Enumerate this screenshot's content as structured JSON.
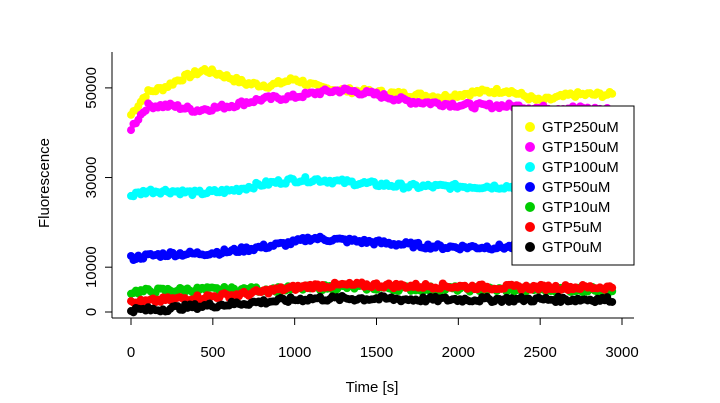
{
  "chart_data": {
    "type": "scatter",
    "xlabel": "Time [s]",
    "ylabel": "Fluorescence",
    "xlim": [
      0,
      3000
    ],
    "ylim": [
      0,
      56000
    ],
    "xticks": [
      0,
      500,
      1000,
      1500,
      2000,
      2500,
      3000
    ],
    "yticks": [
      0,
      10000,
      30000,
      50000
    ],
    "grid": false,
    "legend_position": "right",
    "series": [
      {
        "name": "GTP250uM",
        "color": "#FFFF00",
        "points": [
          [
            0,
            44000
          ],
          [
            100,
            49000
          ],
          [
            200,
            50000
          ],
          [
            300,
            52000
          ],
          [
            450,
            54000
          ],
          [
            550,
            53000
          ],
          [
            700,
            51000
          ],
          [
            850,
            50500
          ],
          [
            1000,
            52000
          ],
          [
            1150,
            50000
          ],
          [
            1300,
            49500
          ],
          [
            1500,
            49000
          ],
          [
            1700,
            48500
          ],
          [
            1900,
            48000
          ],
          [
            2100,
            49000
          ],
          [
            2300,
            49500
          ],
          [
            2500,
            47000
          ],
          [
            2700,
            48500
          ],
          [
            2950,
            48500
          ]
        ]
      },
      {
        "name": "GTP150uM",
        "color": "#FF00FF",
        "points": [
          [
            0,
            41000
          ],
          [
            100,
            46000
          ],
          [
            250,
            46000
          ],
          [
            400,
            45000
          ],
          [
            600,
            46000
          ],
          [
            800,
            47500
          ],
          [
            1000,
            48000
          ],
          [
            1150,
            49000
          ],
          [
            1300,
            49500
          ],
          [
            1500,
            48500
          ],
          [
            1700,
            47000
          ],
          [
            1900,
            46500
          ],
          [
            2100,
            46000
          ],
          [
            2300,
            46000
          ],
          [
            2500,
            45500
          ],
          [
            2700,
            45500
          ],
          [
            2950,
            45000
          ]
        ]
      },
      {
        "name": "GTP100uM",
        "color": "#00FFFF",
        "points": [
          [
            0,
            26000
          ],
          [
            100,
            27000
          ],
          [
            250,
            27000
          ],
          [
            400,
            26500
          ],
          [
            600,
            27000
          ],
          [
            800,
            28500
          ],
          [
            1000,
            29500
          ],
          [
            1150,
            29500
          ],
          [
            1300,
            29000
          ],
          [
            1500,
            28500
          ],
          [
            1700,
            28000
          ],
          [
            1900,
            28000
          ],
          [
            2100,
            28000
          ],
          [
            2300,
            28000
          ],
          [
            2500,
            27500
          ],
          [
            2700,
            27500
          ],
          [
            2950,
            27500
          ]
        ]
      },
      {
        "name": "GTP50uM",
        "color": "#0000FF",
        "points": [
          [
            0,
            12000
          ],
          [
            100,
            12500
          ],
          [
            250,
            13000
          ],
          [
            400,
            13000
          ],
          [
            600,
            13500
          ],
          [
            800,
            14500
          ],
          [
            1000,
            15500
          ],
          [
            1100,
            16500
          ],
          [
            1300,
            16000
          ],
          [
            1500,
            15500
          ],
          [
            1700,
            15000
          ],
          [
            1900,
            14500
          ],
          [
            2100,
            14500
          ],
          [
            2300,
            14500
          ],
          [
            2500,
            14500
          ],
          [
            2700,
            14500
          ],
          [
            2950,
            14500
          ]
        ]
      },
      {
        "name": "GTP10uM",
        "color": "#00CC00",
        "points": [
          [
            0,
            4500
          ],
          [
            200,
            4800
          ],
          [
            400,
            5000
          ],
          [
            600,
            5000
          ],
          [
            800,
            5000
          ],
          [
            1000,
            5200
          ],
          [
            1200,
            5500
          ],
          [
            1400,
            5500
          ],
          [
            1600,
            5300
          ],
          [
            1800,
            5200
          ],
          [
            2000,
            5200
          ],
          [
            2200,
            5000
          ],
          [
            2400,
            5000
          ],
          [
            2600,
            5000
          ],
          [
            2800,
            5000
          ],
          [
            2950,
            5000
          ]
        ]
      },
      {
        "name": "GTP5uM",
        "color": "#FF0000",
        "points": [
          [
            0,
            2000
          ],
          [
            150,
            2500
          ],
          [
            300,
            3000
          ],
          [
            500,
            3500
          ],
          [
            700,
            4000
          ],
          [
            900,
            5000
          ],
          [
            1100,
            5800
          ],
          [
            1300,
            6000
          ],
          [
            1500,
            6000
          ],
          [
            1700,
            5800
          ],
          [
            1900,
            5800
          ],
          [
            2100,
            5600
          ],
          [
            2300,
            5500
          ],
          [
            2500,
            5500
          ],
          [
            2700,
            5500
          ],
          [
            2950,
            5500
          ]
        ]
      },
      {
        "name": "GTP0uM",
        "color": "#000000",
        "points": [
          [
            0,
            500
          ],
          [
            150,
            500
          ],
          [
            300,
            1000
          ],
          [
            500,
            1500
          ],
          [
            700,
            2000
          ],
          [
            900,
            2500
          ],
          [
            1100,
            3000
          ],
          [
            1300,
            3000
          ],
          [
            1500,
            3000
          ],
          [
            1700,
            2800
          ],
          [
            1900,
            2800
          ],
          [
            2100,
            2800
          ],
          [
            2300,
            2800
          ],
          [
            2500,
            2800
          ],
          [
            2700,
            2800
          ],
          [
            2950,
            2800
          ]
        ]
      }
    ]
  }
}
